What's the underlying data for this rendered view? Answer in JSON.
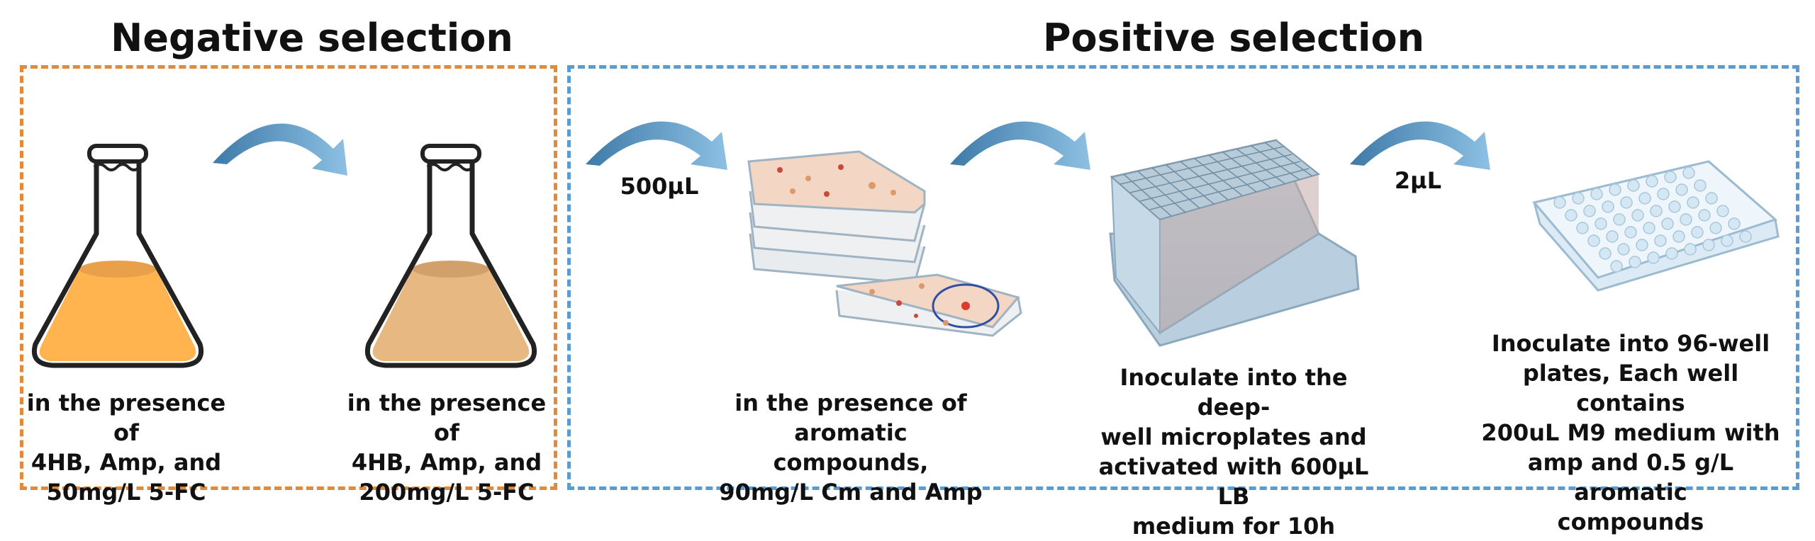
{
  "negative_selection": {
    "title": "Negative selection",
    "border_color": "#e08a3c",
    "steps": [
      {
        "text": "in the presence of\n4HB, Amp, and\n50mg/L 5-FC",
        "liquid_color": "#ffb450"
      },
      {
        "text": "in the presence of\n4HB, Amp, and\n200mg/L 5-FC",
        "liquid_color": "#e8b882"
      }
    ]
  },
  "positive_selection": {
    "title": "Positive selection",
    "border_color": "#5b9bd0",
    "volume_labels": [
      "500µL",
      "2µL"
    ],
    "steps": [
      {
        "text": "in the presence of\naromatic compounds,\n90mg/L Cm and Amp"
      },
      {
        "text": "Inoculate into the deep-\nwell microplates and\nactivated with 600µL LB\nmedium for 10h"
      },
      {
        "text": "Inoculate into 96-well\nplates, Each well contains\n200uL M9 medium with\namp and 0.5 g/L aromatic\ncompounds"
      }
    ]
  },
  "colors": {
    "arrow": "#5a95c2",
    "plate_agar": "#f3d6c4",
    "colony_red": "#c94a3a",
    "colony_orange": "#dc9a6a",
    "microplate_blue": "#d5e7f3"
  }
}
